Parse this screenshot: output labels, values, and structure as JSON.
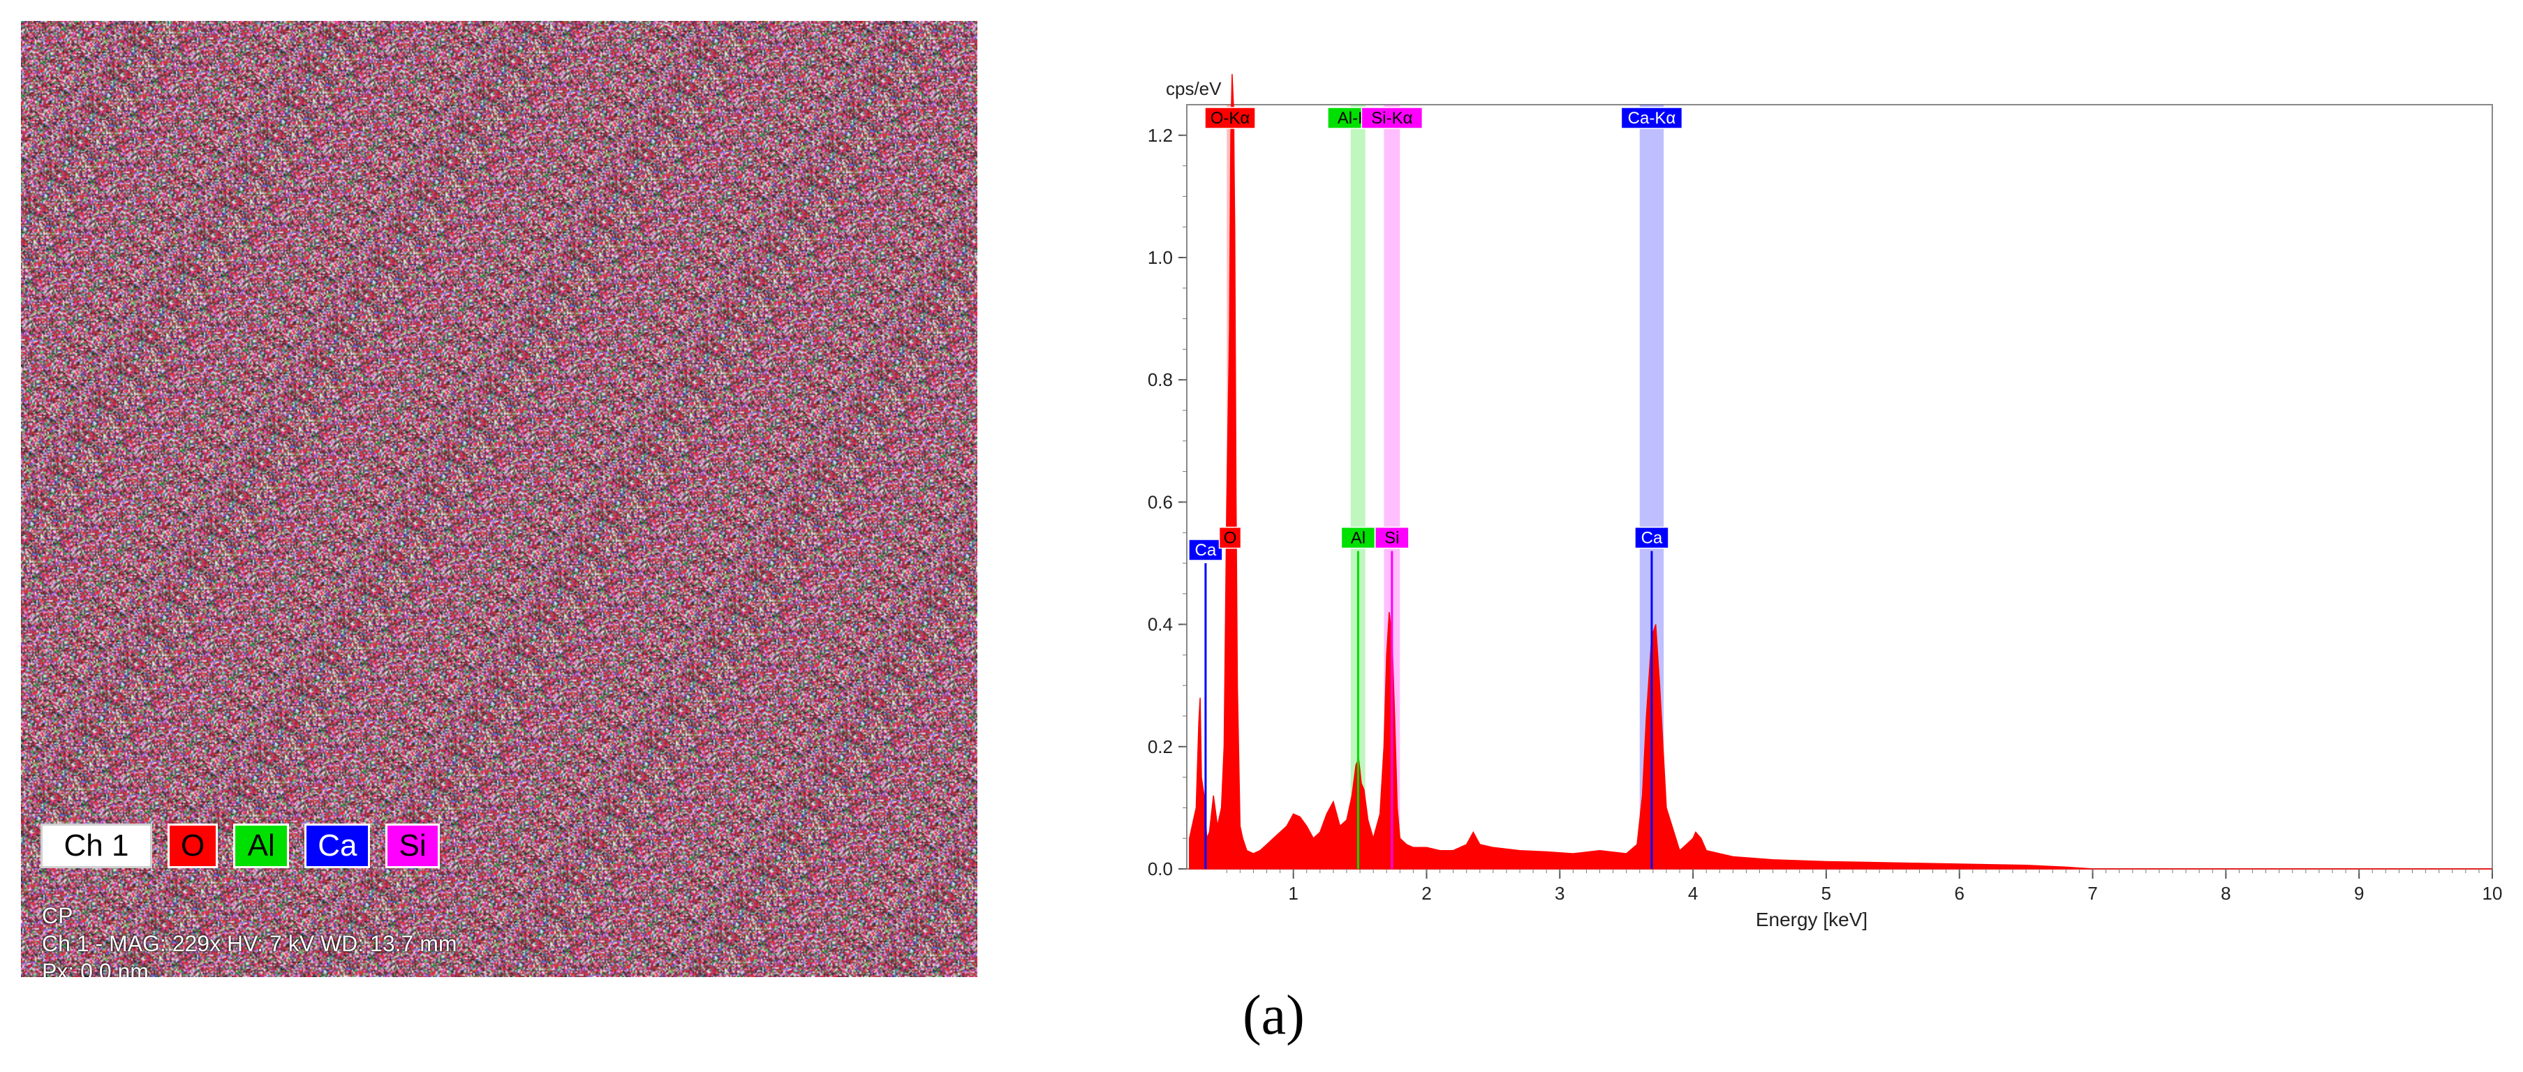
{
  "map": {
    "legend": [
      "Ch 1",
      "O",
      "Al",
      "Ca",
      "Si"
    ],
    "info_lines": [
      "CP",
      "Ch 1 - MAG: 229x   HV: 7 kV   WD: 13.7 mm",
      "Px: 0.0 nm"
    ]
  },
  "caption": "(a)",
  "chart_data": {
    "type": "area",
    "ylabel": "cps/eV",
    "xlabel": "Energy [keV]",
    "xlim": [
      0.2,
      10
    ],
    "ylim": [
      0,
      1.25
    ],
    "x_ticks": [
      "1",
      "2",
      "3",
      "4",
      "5",
      "6",
      "7",
      "8",
      "9",
      "10"
    ],
    "y_ticks": [
      "0.0",
      "0.2",
      "0.4",
      "0.6",
      "0.8",
      "1.0",
      "1.2"
    ],
    "spectrum_color": "#ff0000",
    "spectrum": {
      "x": [
        0.22,
        0.25,
        0.27,
        0.29,
        0.3,
        0.31,
        0.33,
        0.35,
        0.37,
        0.4,
        0.43,
        0.46,
        0.48,
        0.5,
        0.52,
        0.53,
        0.54,
        0.55,
        0.56,
        0.57,
        0.58,
        0.6,
        0.62,
        0.65,
        0.7,
        0.75,
        0.8,
        0.85,
        0.9,
        0.95,
        1.0,
        1.05,
        1.1,
        1.15,
        1.2,
        1.25,
        1.3,
        1.35,
        1.4,
        1.44,
        1.47,
        1.49,
        1.5,
        1.51,
        1.53,
        1.56,
        1.6,
        1.65,
        1.68,
        1.7,
        1.72,
        1.74,
        1.76,
        1.78,
        1.8,
        1.85,
        1.9,
        2.0,
        2.1,
        2.2,
        2.3,
        2.35,
        2.4,
        2.5,
        2.7,
        2.9,
        3.1,
        3.3,
        3.5,
        3.58,
        3.62,
        3.65,
        3.69,
        3.72,
        3.75,
        3.8,
        3.9,
        3.95,
        4.0,
        4.02,
        4.06,
        4.1,
        4.3,
        4.6,
        5.0,
        5.5,
        6.0,
        6.5,
        6.8,
        7.0,
        8.0,
        9.0,
        10.0
      ],
      "y": [
        0.05,
        0.08,
        0.1,
        0.24,
        0.28,
        0.15,
        0.12,
        0.05,
        0.06,
        0.12,
        0.07,
        0.1,
        0.2,
        0.6,
        0.88,
        1.2,
        1.3,
        1.25,
        1.05,
        0.6,
        0.3,
        0.07,
        0.05,
        0.03,
        0.025,
        0.03,
        0.04,
        0.05,
        0.06,
        0.07,
        0.09,
        0.085,
        0.07,
        0.05,
        0.06,
        0.09,
        0.11,
        0.07,
        0.08,
        0.12,
        0.17,
        0.18,
        0.16,
        0.14,
        0.13,
        0.08,
        0.05,
        0.09,
        0.2,
        0.35,
        0.42,
        0.38,
        0.25,
        0.1,
        0.05,
        0.04,
        0.035,
        0.035,
        0.03,
        0.03,
        0.04,
        0.06,
        0.04,
        0.035,
        0.03,
        0.028,
        0.025,
        0.03,
        0.025,
        0.04,
        0.12,
        0.25,
        0.38,
        0.4,
        0.3,
        0.1,
        0.03,
        0.04,
        0.05,
        0.06,
        0.05,
        0.03,
        0.02,
        0.015,
        0.012,
        0.01,
        0.008,
        0.006,
        0.003,
        0.0,
        0.0,
        0.0,
        0.0
      ]
    },
    "kalpha_labels": [
      {
        "label": "O-Kα",
        "x": 0.525,
        "color": "#ff0000",
        "band": [
          0.5,
          0.56
        ]
      },
      {
        "label": "Al-Kα",
        "x": 1.486,
        "color": "#00e000",
        "band": [
          1.43,
          1.54
        ]
      },
      {
        "label": "Si-Kα",
        "x": 1.74,
        "color": "#ff00ff",
        "band": [
          1.68,
          1.8
        ]
      },
      {
        "label": "Ca-Kα",
        "x": 3.69,
        "color": "#0000ff",
        "band": [
          3.6,
          3.78
        ]
      }
    ],
    "element_markers": [
      {
        "label": "Ca",
        "x": 0.341,
        "color": "#0000ff",
        "height": 0.5
      },
      {
        "label": "O",
        "x": 0.525,
        "color": "#ff0000",
        "height": 0.52
      },
      {
        "label": "Al",
        "x": 1.486,
        "color": "#00e000",
        "height": 0.52
      },
      {
        "label": "Si",
        "x": 1.74,
        "color": "#ff00ff",
        "height": 0.52
      },
      {
        "label": "Ca",
        "x": 3.69,
        "color": "#0000ff",
        "height": 0.52
      }
    ]
  }
}
